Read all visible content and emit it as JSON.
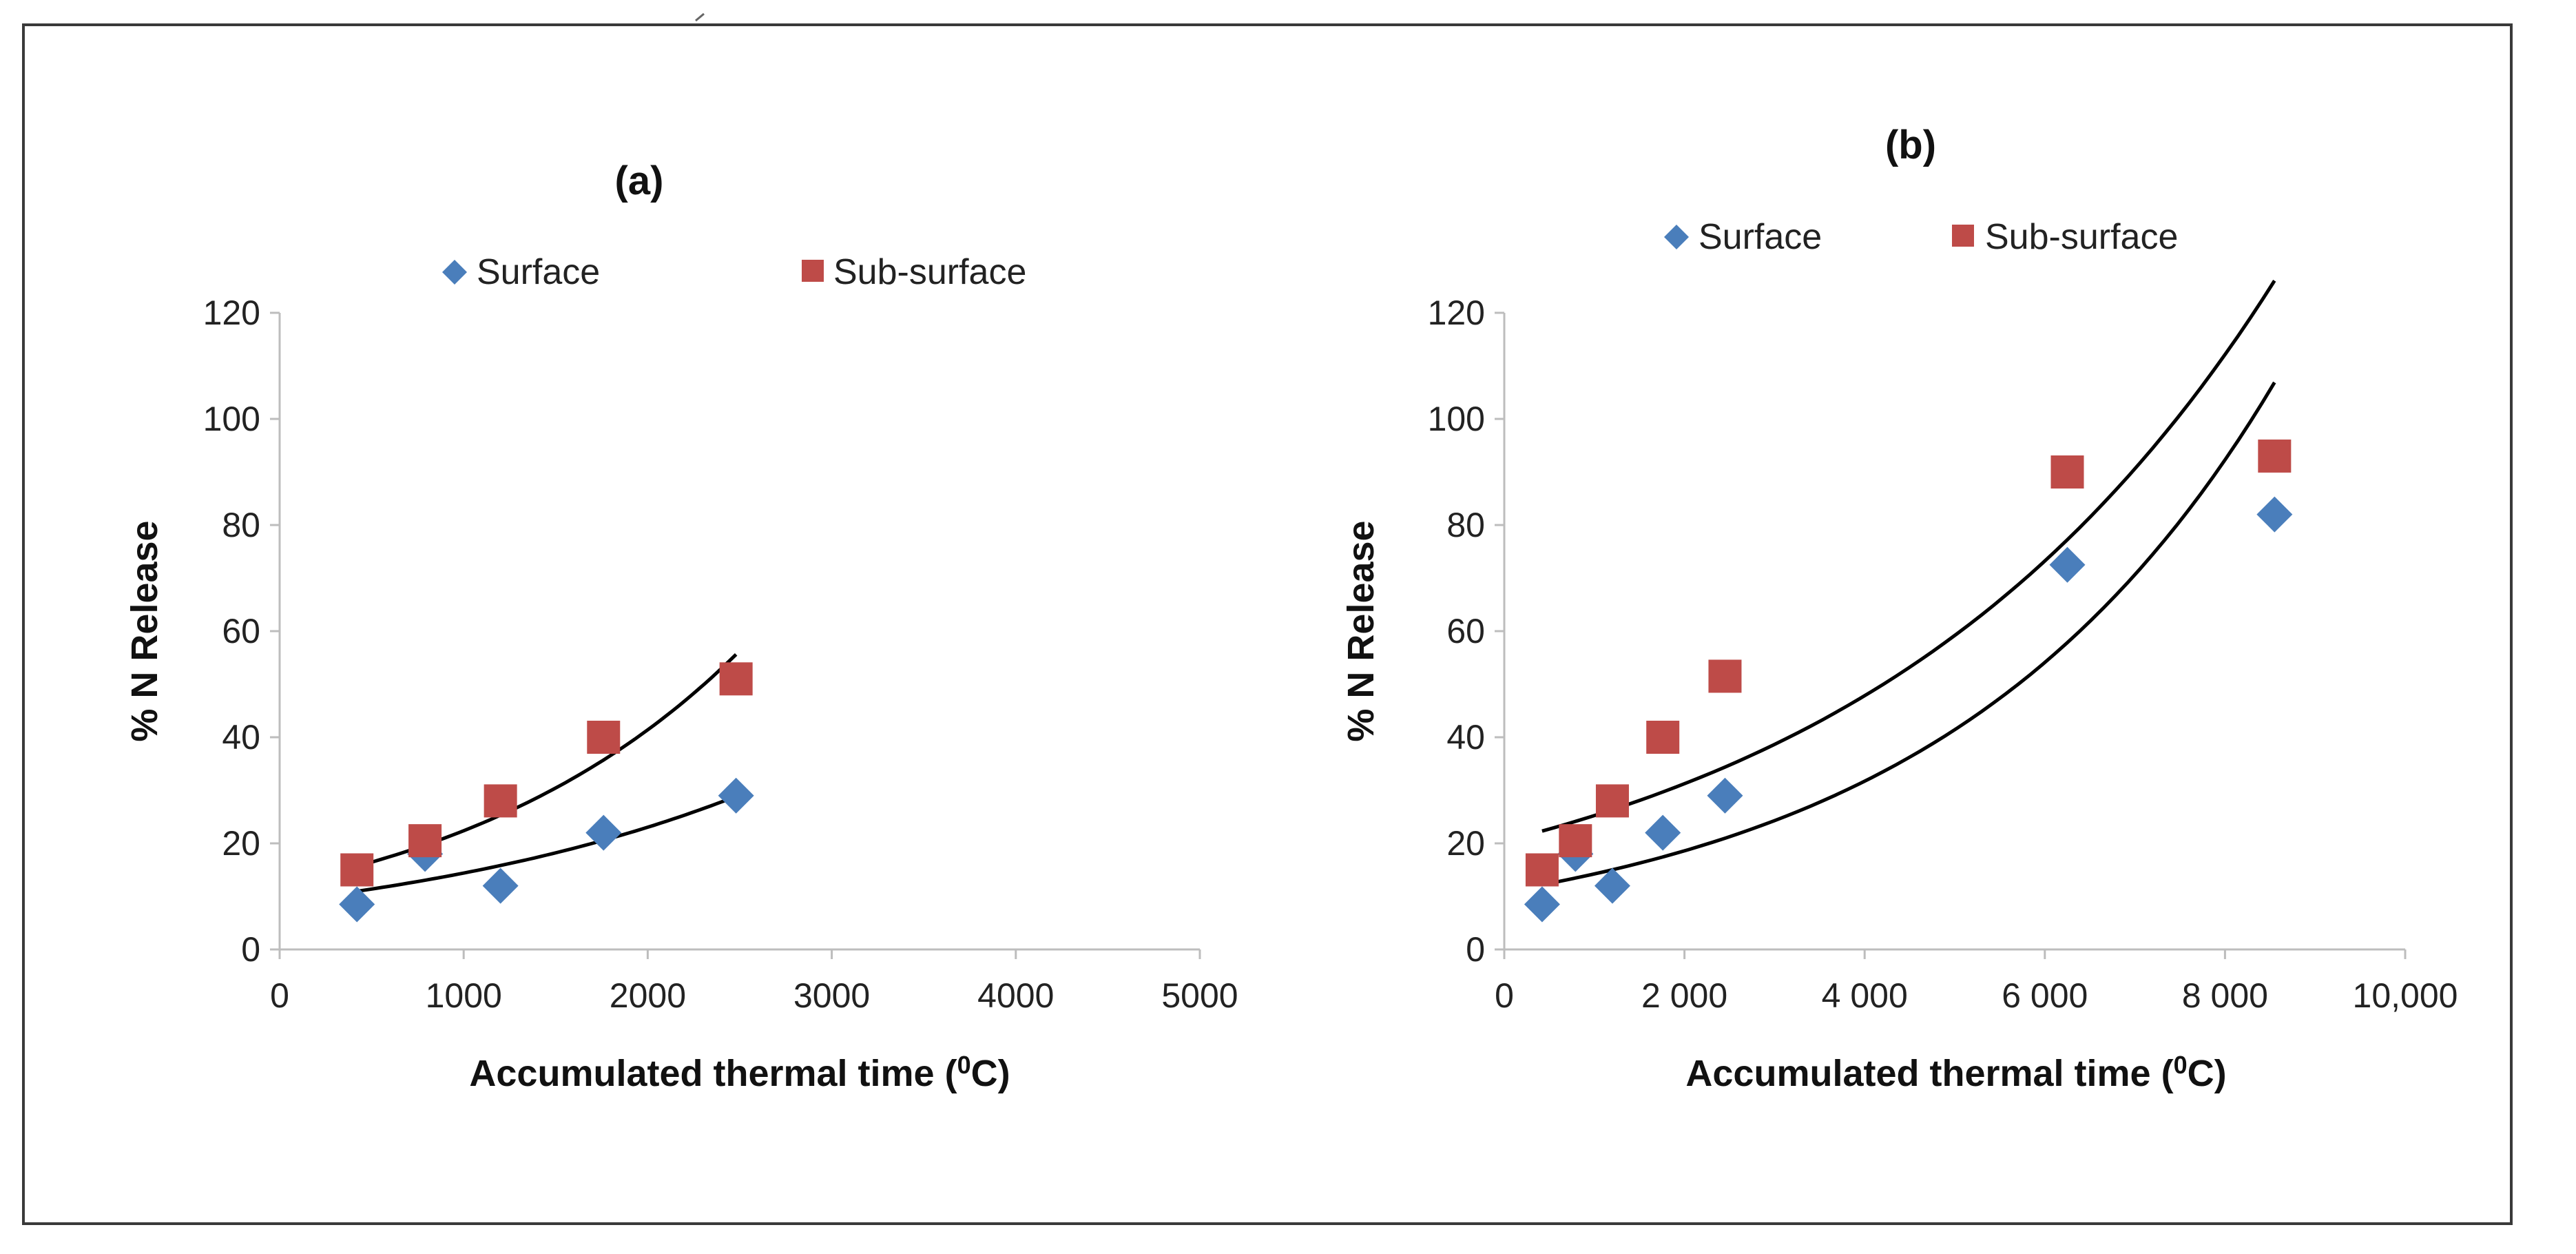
{
  "chart_data": [
    {
      "type": "scatter",
      "title": "(a)",
      "xlabel": "Accumulated thermal time (",
      "xlabel_sup": "0",
      "xlabel_end": "C)",
      "ylabel": "% N Release",
      "xlim": [
        0,
        5000
      ],
      "ylim": [
        0,
        120
      ],
      "xticks": [
        0,
        1000,
        2000,
        3000,
        4000,
        5000
      ],
      "xtick_labels": [
        "0",
        "1000",
        "2000",
        "3000",
        "4000",
        "5000"
      ],
      "yticks": [
        0,
        20,
        40,
        60,
        80,
        100,
        120
      ],
      "ytick_labels": [
        "0",
        "20",
        "40",
        "60",
        "80",
        "100",
        "120"
      ],
      "legend_position": "top",
      "series": [
        {
          "name": "Surface",
          "marker": "diamond",
          "color": "#4a7ebb",
          "x": [
            420,
            790,
            1200,
            1760,
            2480
          ],
          "y": [
            8.5,
            18,
            12,
            22,
            29
          ],
          "trend": {
            "type": "exponential",
            "a": 9.0,
            "b": 0.00047,
            "x_range": [
              420,
              2480
            ]
          }
        },
        {
          "name": "Sub-surface",
          "marker": "square",
          "color": "#be4b48",
          "x": [
            420,
            790,
            1200,
            1760,
            2480
          ],
          "y": [
            15,
            20.5,
            28,
            40,
            51
          ],
          "trend": {
            "type": "exponential",
            "a": 12.1,
            "b": 0.000615,
            "x_range": [
              420,
              2480
            ]
          }
        }
      ]
    },
    {
      "type": "scatter",
      "title": "(b)",
      "xlabel": "Accumulated thermal time (",
      "xlabel_sup": "0",
      "xlabel_end": "C)",
      "ylabel": "% N Release",
      "xlim": [
        0,
        10000
      ],
      "ylim": [
        0,
        120
      ],
      "xticks": [
        0,
        2000,
        4000,
        6000,
        8000,
        10000
      ],
      "xtick_labels": [
        "0",
        "2 000",
        "4 000",
        "6 000",
        "8 000",
        "10,000"
      ],
      "yticks": [
        0,
        20,
        40,
        60,
        80,
        100,
        120
      ],
      "ytick_labels": [
        "0",
        "20",
        "40",
        "60",
        "80",
        "100",
        "120"
      ],
      "legend_position": "top",
      "series": [
        {
          "name": "Surface",
          "marker": "diamond",
          "color": "#4a7ebb",
          "x": [
            420,
            790,
            1200,
            1760,
            2450,
            6250,
            8550
          ],
          "y": [
            8.5,
            18,
            12,
            22,
            29,
            72.5,
            82
          ],
          "trend": {
            "type": "exponential",
            "a": 10.9,
            "b": 0.000267,
            "x_range": [
              420,
              8550
            ]
          }
        },
        {
          "name": "Sub-surface",
          "marker": "square",
          "color": "#be4b48",
          "x": [
            420,
            790,
            1200,
            1760,
            2450,
            6250,
            8550
          ],
          "y": [
            15,
            20.5,
            28,
            40,
            51.5,
            90,
            93
          ],
          "trend": {
            "type": "exponential",
            "a": 20.4,
            "b": 0.000213,
            "x_range": [
              420,
              8550
            ]
          }
        }
      ]
    }
  ]
}
